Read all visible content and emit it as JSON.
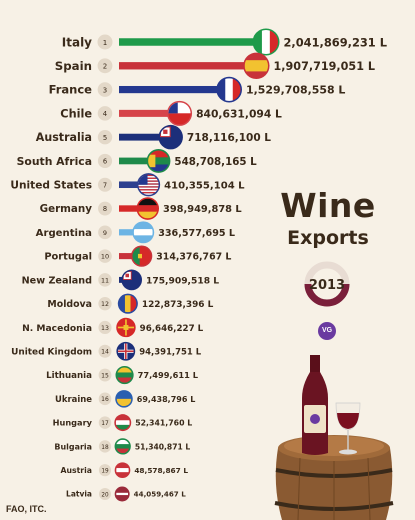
{
  "title": "Wine",
  "subtitle": "Exports",
  "year": "2013",
  "source": "FAO, ITC.",
  "brand": "VG",
  "colors": {
    "background": "#f7f1e6",
    "text": "#3a2a1a",
    "ring": "#7a1f3a",
    "ring_track": "#e8dcd3"
  },
  "chart_data": {
    "type": "bar",
    "unit": "L",
    "rows": [
      {
        "rank": 1,
        "country": "Italy",
        "value": 2041869231,
        "label": "2,041,869,231 L",
        "color": "#1f9a4a",
        "flag": "italy-flag-icon"
      },
      {
        "rank": 2,
        "country": "Spain",
        "value": 1907719051,
        "label": "1,907,719,051 L",
        "color": "#c8323a",
        "flag": "spain-flag-icon"
      },
      {
        "rank": 3,
        "country": "France",
        "value": 1529708558,
        "label": "1,529,708,558 L",
        "color": "#24388f",
        "flag": "france-flag-icon"
      },
      {
        "rank": 4,
        "country": "Chile",
        "value": 840631094,
        "label": "840,631,094 L",
        "color": "#d6444a",
        "flag": "chile-flag-icon"
      },
      {
        "rank": 5,
        "country": "Australia",
        "value": 718116100,
        "label": "718,116,100 L",
        "color": "#1c2f7a",
        "flag": "australia-flag-icon"
      },
      {
        "rank": 6,
        "country": "South Africa",
        "value": 548708165,
        "label": "548,708,165 L",
        "color": "#1e8a4a",
        "flag": "south-africa-flag-icon"
      },
      {
        "rank": 7,
        "country": "United States",
        "value": 410355104,
        "label": "410,355,104 L",
        "color": "#2c3f8f",
        "flag": "united-states-flag-icon"
      },
      {
        "rank": 8,
        "country": "Germany",
        "value": 398949878,
        "label": "398,949,878 L",
        "color": "#d62828",
        "flag": "germany-flag-icon"
      },
      {
        "rank": 9,
        "country": "Argentina",
        "value": 336577695,
        "label": "336,577,695 L",
        "color": "#6cb4e4",
        "flag": "argentina-flag-icon"
      },
      {
        "rank": 10,
        "country": "Portugal",
        "value": 314376767,
        "label": "314,376,767 L",
        "color": "#c8323a",
        "flag": "portugal-flag-icon"
      },
      {
        "rank": 11,
        "country": "New Zealand",
        "value": 175909518,
        "label": "175,909,518 L",
        "color": "#1c2f7a",
        "flag": "new-zealand-flag-icon"
      },
      {
        "rank": 12,
        "country": "Moldova",
        "value": 122873396,
        "label": "122,873,396 L",
        "color": "#2a4aa0",
        "flag": "moldova-flag-icon"
      },
      {
        "rank": 13,
        "country": "N. Macedonia",
        "value": 96646227,
        "label": "96,646,227 L",
        "color": "#d62828",
        "flag": "north-macedonia-flag-icon"
      },
      {
        "rank": 14,
        "country": "United Kingdom",
        "value": 94391751,
        "label": "94,391,751 L",
        "color": "#1c2f7a",
        "flag": "united-kingdom-flag-icon"
      },
      {
        "rank": 15,
        "country": "Lithuania",
        "value": 77499611,
        "label": "77,499,611 L",
        "color": "#1e8a4a",
        "flag": "lithuania-flag-icon"
      },
      {
        "rank": 16,
        "country": "Ukraine",
        "value": 69438796,
        "label": "69,438,796 L",
        "color": "#2a5fb0",
        "flag": "ukraine-flag-icon"
      },
      {
        "rank": 17,
        "country": "Hungary",
        "value": 52341760,
        "label": "52,341,760 L",
        "color": "#c8323a",
        "flag": "hungary-flag-icon"
      },
      {
        "rank": 18,
        "country": "Bulgaria",
        "value": 51340871,
        "label": "51,340,871 L",
        "color": "#1e8a4a",
        "flag": "bulgaria-flag-icon"
      },
      {
        "rank": 19,
        "country": "Austria",
        "value": 48578867,
        "label": "48,578,867 L",
        "color": "#c8323a",
        "flag": "austria-flag-icon"
      },
      {
        "rank": 20,
        "country": "Latvia",
        "value": 44059467,
        "label": "44,059,467 L",
        "color": "#9a2a3a",
        "flag": "latvia-flag-icon"
      }
    ]
  }
}
